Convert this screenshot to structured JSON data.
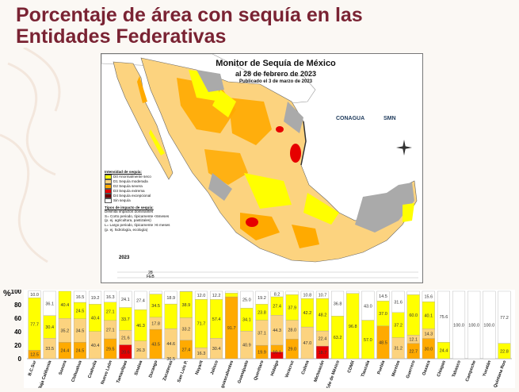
{
  "page": {
    "title_line1": "Porcentaje de área con sequía en las",
    "title_line2": "Entidades Federativas"
  },
  "map": {
    "title": "Monitor de Sequía de México",
    "date": "al 28 de febrero de 2023",
    "published": "Publicado el 3 de marzo de 2023",
    "logo_conagua": "CONAGUA",
    "logo_smn": "SMN",
    "year_label": "2023",
    "timeline_day": "28",
    "timeline_month": "FEB",
    "legend": {
      "intensity_title": "Intensidad de sequía:",
      "items": [
        {
          "label": "D0 Anormalmente seco",
          "color": "#ffff00"
        },
        {
          "label": "D1 Sequía moderada",
          "color": "#fcd37f"
        },
        {
          "label": "D2 Sequía severa",
          "color": "#ffaa00"
        },
        {
          "label": "D3 Sequía extrema",
          "color": "#e60000"
        },
        {
          "label": "D4 Sequía excepcional",
          "color": "#730000"
        },
        {
          "label": "Sin sequía",
          "color": "#ffffff"
        }
      ],
      "impact_title": "Tipos de impacto de sequía:",
      "impact_lines": [
        "Delimita impactos dominantes",
        "S= Corto periodo, típicamente <6meses",
        "(p. ej. agricultura, pastizales)",
        "L= Largo periodo, típicamente >6 meses",
        "(p. ej. hidrología, ecología)"
      ]
    }
  },
  "chart_data": {
    "type": "bar",
    "stacked": true,
    "ylabel": "%",
    "ylim": [
      0,
      100
    ],
    "yticks": [
      0,
      20,
      40,
      60,
      80,
      100
    ],
    "grid": false,
    "categories": [
      "B.C.Sur",
      "Baja California",
      "Sonora",
      "Chihuahua",
      "Coahuila",
      "Nuevo León",
      "Tamaulipas",
      "Sinaloa",
      "Durango",
      "Zacatecas",
      "San Luis P.",
      "Nayarit",
      "Jalisco",
      "Aguascalientes",
      "Guanajuato",
      "Querétaro",
      "Hidalgo",
      "Veracruz",
      "Colima",
      "Michoacán",
      "Edo de México",
      "CDMX",
      "Tlaxcala",
      "Puebla",
      "Morelos",
      "Guerrero",
      "Oaxaca",
      "Chiapas",
      "Tabasco",
      "Campeche",
      "Yucatán",
      "Quintana Roo"
    ],
    "series": [
      {
        "name": "D0 Anormalmente seco",
        "color": "#ffff00",
        "values": [
          77.7,
          33.5,
          40.4,
          24.5,
          40.4,
          27.1,
          33.7,
          46.3,
          34.5,
          36.5,
          38.9,
          71.7,
          57.4,
          5.5,
          34.1,
          23.8,
          27.4,
          37.9,
          42.2,
          48.2,
          63.2,
          96.8,
          57.0,
          37.0,
          37.2,
          60.0,
          40.1,
          24.4,
          0,
          0,
          0,
          22.8
        ]
      },
      {
        "name": "D1 Sequía moderada",
        "color": "#fcd37f",
        "values": [
          0,
          30.4,
          35.2,
          34.5,
          40.4,
          27.1,
          21.6,
          26.3,
          17.8,
          44.6,
          33.2,
          16.3,
          30.4,
          0,
          40.9,
          37.1,
          44.3,
          28.0,
          47.0,
          22.4,
          0,
          0,
          0,
          0,
          31.2,
          12.1,
          14.3,
          0,
          0,
          0,
          0,
          0
        ]
      },
      {
        "name": "D2 Sequía severa",
        "color": "#ffaa00",
        "values": [
          12.5,
          0,
          24.4,
          24.5,
          0,
          29.5,
          0,
          0,
          43.5,
          0,
          27.4,
          0,
          0,
          91.7,
          0,
          19.9,
          10.1,
          29.0,
          0,
          0,
          0,
          0,
          0,
          48.5,
          0,
          22.7,
          30.0,
          0,
          0,
          0,
          0,
          0
        ]
      },
      {
        "name": "D3 Sequía extrema",
        "color": "#e60000",
        "values": [
          0,
          0,
          0,
          0,
          0,
          0,
          20.6,
          0,
          0,
          0,
          0,
          0,
          0,
          0,
          0,
          0,
          10.0,
          0,
          0,
          18.7,
          0,
          0,
          0,
          0,
          0,
          0,
          0,
          0,
          0,
          0,
          0,
          0
        ]
      },
      {
        "name": "D4 Sequía excepcional",
        "color": "#730000",
        "values": [
          0,
          0,
          0,
          0,
          0,
          0,
          0,
          0,
          0,
          0,
          0,
          0,
          0,
          0,
          0,
          0,
          0,
          0,
          0,
          0,
          0,
          0,
          0,
          0,
          0,
          0,
          0,
          0,
          0,
          0,
          0,
          0
        ]
      },
      {
        "name": "Sin sequía",
        "color": "#ffffff",
        "values": [
          10.0,
          36.1,
          0,
          16.5,
          19.2,
          16.3,
          24.1,
          27.4,
          4.2,
          18.9,
          0.5,
          12.0,
          12.2,
          2.8,
          25.0,
          19.2,
          8.2,
          5.1,
          10.8,
          10.7,
          36.8,
          3.2,
          43.0,
          14.5,
          31.6,
          5.2,
          15.6,
          75.6,
          100,
          100,
          100,
          77.2
        ]
      }
    ],
    "labels": [
      [
        "12.5",
        "",
        "77.7",
        "10.0"
      ],
      [
        "",
        "33.5",
        "30.4",
        "36.1"
      ],
      [
        "24.4",
        "35.2",
        "40.4",
        ""
      ],
      [
        "24.5",
        "34.5",
        "24.5",
        "16.5"
      ],
      [
        "",
        "40.4",
        "40.4",
        "19.2"
      ],
      [
        "29.5",
        "27.1",
        "27.1",
        "16.3"
      ],
      [
        "20.6",
        "21.6",
        "33.7",
        "24.1"
      ],
      [
        "",
        "26.3",
        "46.3",
        "27.4"
      ],
      [
        "43.5",
        "17.8",
        "34.5",
        ""
      ],
      [
        "36.5",
        "44.6",
        "",
        "18.9"
      ],
      [
        "27.4",
        "33.2",
        "38.9",
        ""
      ],
      [
        "",
        "16.3",
        "71.7",
        "12.0"
      ],
      [
        "",
        "30.4",
        "57.4",
        "12.2"
      ],
      [
        "91.7",
        "",
        "",
        ""
      ],
      [
        "",
        "40.9",
        "34.1",
        "25.0"
      ],
      [
        "19.9",
        "37.1",
        "23.8",
        "19.2"
      ],
      [
        "10.1",
        "44.3",
        "27.4",
        "8.2"
      ],
      [
        "29.0",
        "28.0",
        "37.9",
        ""
      ],
      [
        "",
        "47.0",
        "42.2",
        "10.8"
      ],
      [
        "18.7",
        "22.4",
        "48.2",
        "10.7"
      ],
      [
        "",
        "",
        "63.2",
        "36.8"
      ],
      [
        "",
        "",
        "96.8",
        ""
      ],
      [
        "",
        "",
        "57.0",
        "43.0"
      ],
      [
        "48.5",
        "",
        "37.0",
        "14.5"
      ],
      [
        "",
        "31.2",
        "37.2",
        "31.6"
      ],
      [
        "22.7",
        "12.1",
        "60.0",
        ""
      ],
      [
        "30.0",
        "14.3",
        "40.1",
        "15.6"
      ],
      [
        "",
        "",
        "24.4",
        "75.6"
      ],
      [
        "",
        "",
        "",
        "100.0"
      ],
      [
        "",
        "",
        "",
        "100.0"
      ],
      [
        "",
        "",
        "",
        "100.0"
      ],
      [
        "",
        "",
        "22.8",
        "77.2"
      ]
    ]
  }
}
